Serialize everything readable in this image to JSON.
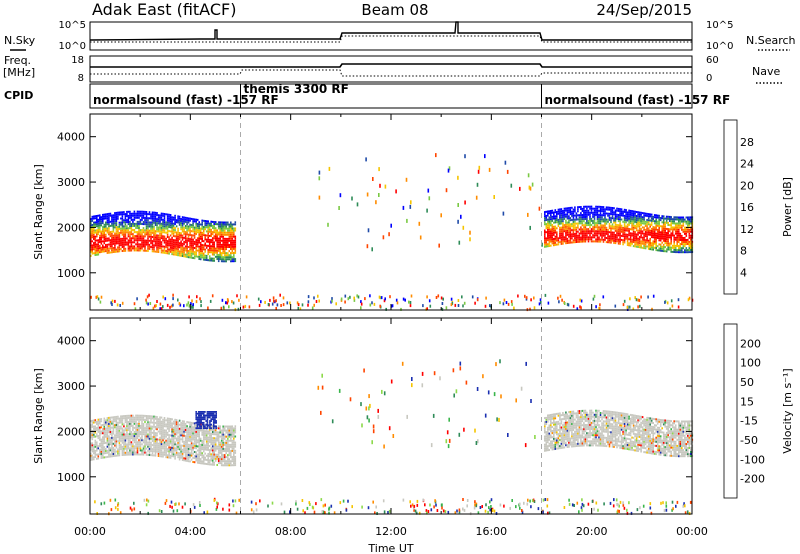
{
  "header": {
    "station": "Adak East (fitACF)",
    "beam": "Beam 08",
    "date": "24/Sep/2015"
  },
  "side_labels": {
    "nsky": "N.Sky",
    "freq_top": "Freq.",
    "freq_unit": "[MHz]",
    "cpid": "CPID",
    "nsearch": "N.Search",
    "nave": "Nave"
  },
  "noise_panel": {
    "left_ticks": [
      "10^5",
      "10^0"
    ],
    "right_ticks": [
      "10^5",
      "10^0"
    ]
  },
  "freq_panel": {
    "left_ticks": [
      "18",
      "8"
    ],
    "right_ticks": [
      "60",
      "0"
    ]
  },
  "cpid_segments": [
    {
      "label": "normalsound (fast) -157 RF",
      "start": 0,
      "end": 6
    },
    {
      "label": "themis 3300 RF",
      "start": 6,
      "end": 18
    },
    {
      "label": "normalsound (fast) -157 RF",
      "start": 18,
      "end": 24
    }
  ],
  "chart_data": [
    {
      "type": "heatmap",
      "name": "Power",
      "colorbar_label": "Power [dB]",
      "colorbar_ticks": [
        "28",
        "24",
        "20",
        "16",
        "12",
        "8",
        "4"
      ],
      "colorbar_colors": [
        "#0000ff",
        "#1f4aa8",
        "#2e8b57",
        "#7ac943",
        "#f5c400",
        "#ff8c00",
        "#ff4500",
        "#ff0000"
      ],
      "ylabel": "Slant Range [km]",
      "y_ticks": [
        "4000",
        "3000",
        "2000",
        "1000"
      ],
      "ylim": [
        180,
        4500
      ],
      "xlim": [
        0,
        24
      ],
      "bands": [
        {
          "t0": 0.0,
          "t1": 5.8,
          "r0": 1350,
          "r1": 2250
        },
        {
          "t0": 18.1,
          "t1": 24.0,
          "r0": 1550,
          "r1": 2350
        }
      ]
    },
    {
      "type": "heatmap",
      "name": "Velocity",
      "colorbar_label": "Velocity [m s⁻¹]",
      "colorbar_ticks": [
        "200",
        "100",
        "50",
        "15",
        "-15",
        "-50",
        "-100",
        "-200"
      ],
      "colorbar_colors": [
        "#1a2fb0",
        "#2e8b57",
        "#39b54a",
        "#8cd94a",
        "#c8c8c0",
        "#f5c400",
        "#ff8c00",
        "#ff4500",
        "#ff0000"
      ],
      "ylabel": "Slant Range [km]",
      "y_ticks": [
        "4000",
        "3000",
        "2000",
        "1000"
      ],
      "ylim": [
        180,
        4500
      ],
      "xlim": [
        0,
        24
      ],
      "bands": [
        {
          "t0": 0.0,
          "t1": 5.8,
          "r0": 1350,
          "r1": 2250
        },
        {
          "t0": 18.1,
          "t1": 24.0,
          "r0": 1550,
          "r1": 2350
        }
      ],
      "xlabel": "Time UT",
      "x_ticks": [
        "00:00",
        "04:00",
        "08:00",
        "12:00",
        "16:00",
        "20:00",
        "00:00"
      ]
    }
  ]
}
